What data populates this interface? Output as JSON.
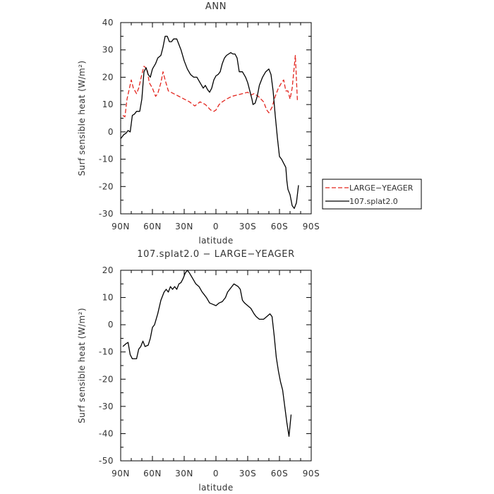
{
  "chart_data": [
    {
      "type": "line",
      "title": "ANN",
      "xlabel": "latitude",
      "ylabel": "Surf sensible heat (W/m²)",
      "xlim": [
        -90,
        90
      ],
      "ylim": [
        -30,
        40
      ],
      "x_ticks": [
        {
          "value": -90,
          "label": "90N"
        },
        {
          "value": -60,
          "label": "60N"
        },
        {
          "value": -30,
          "label": "30N"
        },
        {
          "value": 0,
          "label": "0"
        },
        {
          "value": 30,
          "label": "30S"
        },
        {
          "value": 60,
          "label": "60S"
        },
        {
          "value": 90,
          "label": "90S"
        }
      ],
      "y_ticks": [
        -30,
        -20,
        -10,
        0,
        10,
        20,
        30,
        40
      ],
      "legend": "outside-right",
      "series": [
        {
          "name": "LARGE−YEAGER",
          "color": "#e3261f",
          "dash": "dashed",
          "points": [
            [
              -88,
              6
            ],
            [
              -86,
              5.5
            ],
            [
              -84,
              12
            ],
            [
              -80,
              19
            ],
            [
              -78,
              16
            ],
            [
              -75,
              14
            ],
            [
              -73,
              16
            ],
            [
              -70,
              21
            ],
            [
              -68,
              24
            ],
            [
              -65,
              23
            ],
            [
              -63,
              18
            ],
            [
              -60,
              16
            ],
            [
              -57,
              13
            ],
            [
              -55,
              14
            ],
            [
              -52,
              18
            ],
            [
              -50,
              22
            ],
            [
              -48,
              19
            ],
            [
              -45,
              15
            ],
            [
              -40,
              14
            ],
            [
              -35,
              13
            ],
            [
              -30,
              12
            ],
            [
              -25,
              11
            ],
            [
              -20,
              9.5
            ],
            [
              -15,
              11
            ],
            [
              -10,
              10
            ],
            [
              -5,
              8
            ],
            [
              -2,
              7.5
            ],
            [
              0,
              8
            ],
            [
              3,
              10
            ],
            [
              6,
              11
            ],
            [
              10,
              12
            ],
            [
              15,
              13
            ],
            [
              20,
              13.5
            ],
            [
              25,
              14
            ],
            [
              30,
              14.5
            ],
            [
              33,
              13.5
            ],
            [
              36,
              14
            ],
            [
              40,
              13
            ],
            [
              45,
              11
            ],
            [
              48,
              8
            ],
            [
              50,
              7
            ],
            [
              53,
              9
            ],
            [
              56,
              13
            ],
            [
              59,
              16
            ],
            [
              62,
              18
            ],
            [
              64,
              19
            ],
            [
              66,
              15
            ],
            [
              68,
              15
            ],
            [
              70,
              12
            ],
            [
              72,
              16
            ],
            [
              75,
              28
            ],
            [
              77,
              11
            ]
          ]
        },
        {
          "name": "107.splat2.0",
          "color": "#000000",
          "dash": "solid",
          "points": [
            [
              -90,
              -2.5
            ],
            [
              -87,
              -1
            ],
            [
              -85,
              -0.5
            ],
            [
              -83,
              0.5
            ],
            [
              -81,
              0
            ],
            [
              -79,
              6
            ],
            [
              -77,
              6.5
            ],
            [
              -75,
              7.5
            ],
            [
              -72,
              7.5
            ],
            [
              -70,
              12
            ],
            [
              -68,
              22
            ],
            [
              -66,
              23.5
            ],
            [
              -64,
              21
            ],
            [
              -62,
              20
            ],
            [
              -60,
              23
            ],
            [
              -57,
              25
            ],
            [
              -55,
              27
            ],
            [
              -52,
              28
            ],
            [
              -50,
              31
            ],
            [
              -48,
              35
            ],
            [
              -46,
              35
            ],
            [
              -44,
              33
            ],
            [
              -42,
              33
            ],
            [
              -40,
              34
            ],
            [
              -37,
              34
            ],
            [
              -35,
              32
            ],
            [
              -33,
              30
            ],
            [
              -30,
              26
            ],
            [
              -27,
              23
            ],
            [
              -24,
              21
            ],
            [
              -21,
              20
            ],
            [
              -18,
              20
            ],
            [
              -15,
              18
            ],
            [
              -12,
              16
            ],
            [
              -10,
              17
            ],
            [
              -8,
              15.5
            ],
            [
              -6,
              14.5
            ],
            [
              -4,
              16
            ],
            [
              -2,
              19
            ],
            [
              0,
              20.5
            ],
            [
              2,
              21
            ],
            [
              4,
              22
            ],
            [
              6,
              25
            ],
            [
              8,
              27
            ],
            [
              10,
              28
            ],
            [
              12,
              28.5
            ],
            [
              14,
              29
            ],
            [
              16,
              28.5
            ],
            [
              18,
              28.5
            ],
            [
              20,
              27
            ],
            [
              22,
              22
            ],
            [
              25,
              22
            ],
            [
              28,
              20
            ],
            [
              30,
              18
            ],
            [
              32,
              15
            ],
            [
              34,
              12
            ],
            [
              35,
              10
            ],
            [
              37,
              10.5
            ],
            [
              39,
              13
            ],
            [
              41,
              17
            ],
            [
              44,
              20
            ],
            [
              47,
              22
            ],
            [
              50,
              23
            ],
            [
              52,
              21
            ],
            [
              54,
              15
            ],
            [
              56,
              6
            ],
            [
              58,
              -2
            ],
            [
              60,
              -9
            ],
            [
              62,
              -10
            ],
            [
              64,
              -11.5
            ],
            [
              66,
              -13
            ],
            [
              67,
              -18
            ],
            [
              68,
              -21
            ],
            [
              70,
              -23
            ],
            [
              72,
              -27
            ],
            [
              74,
              -28
            ],
            [
              76,
              -26
            ],
            [
              78,
              -19.5
            ]
          ]
        }
      ]
    },
    {
      "type": "line",
      "title": "107.splat2.0 − LARGE−YEAGER",
      "xlabel": "latitude",
      "ylabel": "Surf sensible heat (W/m²)",
      "xlim": [
        -90,
        90
      ],
      "ylim": [
        -50,
        20
      ],
      "x_ticks": [
        {
          "value": -90,
          "label": "90N"
        },
        {
          "value": -60,
          "label": "60N"
        },
        {
          "value": -30,
          "label": "30N"
        },
        {
          "value": 0,
          "label": "0"
        },
        {
          "value": 30,
          "label": "30S"
        },
        {
          "value": 60,
          "label": "60S"
        },
        {
          "value": 90,
          "label": "90S"
        }
      ],
      "y_ticks": [
        -50,
        -40,
        -30,
        -20,
        -10,
        0,
        10,
        20
      ],
      "series": [
        {
          "color": "#000000",
          "dash": "solid",
          "points": [
            [
              -88,
              -8
            ],
            [
              -85,
              -7
            ],
            [
              -83,
              -6.5
            ],
            [
              -81,
              -11
            ],
            [
              -79,
              -12.5
            ],
            [
              -77,
              -12.5
            ],
            [
              -75,
              -12.5
            ],
            [
              -73,
              -9
            ],
            [
              -71,
              -8
            ],
            [
              -69,
              -6
            ],
            [
              -67,
              -8
            ],
            [
              -64,
              -7.5
            ],
            [
              -62,
              -5
            ],
            [
              -60,
              -1
            ],
            [
              -58,
              0
            ],
            [
              -55,
              4
            ],
            [
              -52,
              9
            ],
            [
              -49,
              12
            ],
            [
              -47,
              13
            ],
            [
              -45,
              12
            ],
            [
              -43,
              14
            ],
            [
              -41,
              13
            ],
            [
              -39,
              14
            ],
            [
              -37,
              13
            ],
            [
              -35,
              15
            ],
            [
              -33,
              15.5
            ],
            [
              -31,
              17
            ],
            [
              -29,
              19
            ],
            [
              -27,
              20
            ],
            [
              -25,
              19
            ],
            [
              -22,
              17
            ],
            [
              -19,
              15
            ],
            [
              -16,
              14
            ],
            [
              -13,
              12
            ],
            [
              -11,
              11
            ],
            [
              -9,
              10
            ],
            [
              -6,
              8
            ],
            [
              -3,
              7.5
            ],
            [
              0,
              7
            ],
            [
              3,
              8
            ],
            [
              6,
              8.5
            ],
            [
              9,
              10
            ],
            [
              11,
              12
            ],
            [
              13,
              13
            ],
            [
              15,
              14
            ],
            [
              17,
              15
            ],
            [
              19,
              14.5
            ],
            [
              21,
              14
            ],
            [
              23,
              13
            ],
            [
              25,
              9
            ],
            [
              27,
              8
            ],
            [
              30,
              7
            ],
            [
              33,
              6
            ],
            [
              36,
              4
            ],
            [
              38,
              3
            ],
            [
              41,
              2
            ],
            [
              45,
              2
            ],
            [
              48,
              3
            ],
            [
              51,
              4
            ],
            [
              53,
              3
            ],
            [
              55,
              -4
            ],
            [
              57,
              -12
            ],
            [
              59,
              -17
            ],
            [
              61,
              -21
            ],
            [
              63,
              -24
            ],
            [
              65,
              -30
            ],
            [
              67,
              -36
            ],
            [
              69,
              -41
            ],
            [
              71,
              -33
            ]
          ]
        }
      ]
    }
  ]
}
